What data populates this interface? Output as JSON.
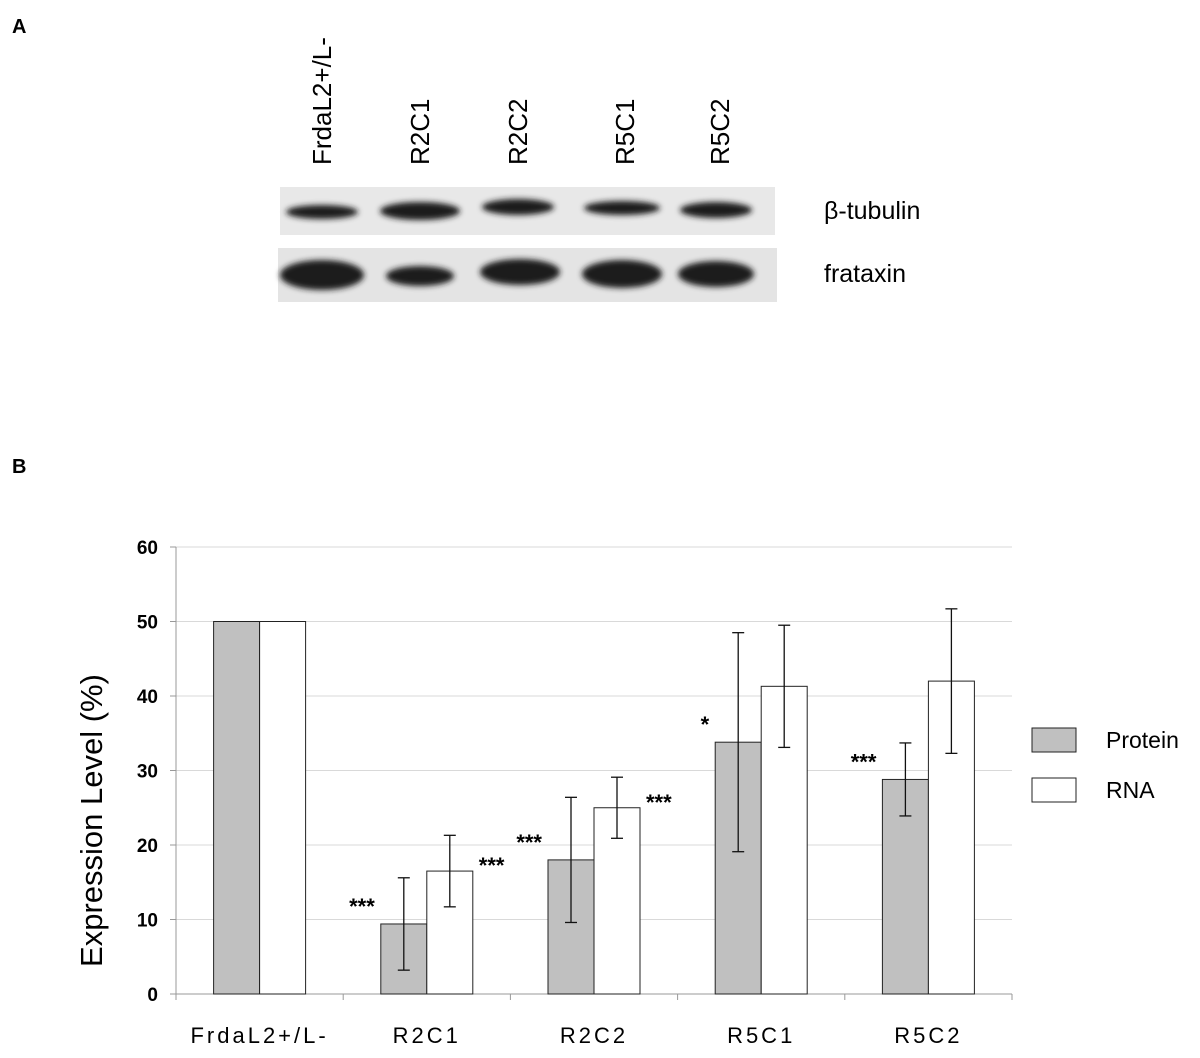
{
  "panel_labels": [
    "A",
    "B"
  ],
  "blot": {
    "lanes": [
      "FrdaL2+/L-",
      "R2C1",
      "R2C2",
      "R5C1",
      "R5C2"
    ],
    "bands": [
      "β-tubulin",
      "frataxin"
    ]
  },
  "chart_data": {
    "type": "bar",
    "categories": [
      "FrdaL2+/L-",
      "R2C1",
      "R2C2",
      "R5C1",
      "R5C2"
    ],
    "ylabel": "Expression Level (%)",
    "ylim": [
      0,
      60
    ],
    "yticks": [
      0,
      10,
      20,
      30,
      40,
      50,
      60
    ],
    "grid": true,
    "legend": "right",
    "series": [
      {
        "name": "Protein",
        "color": "#c0c0c0",
        "values": [
          50,
          9.4,
          18,
          33.8,
          28.8
        ],
        "errors": [
          null,
          6.2,
          8.4,
          14.7,
          4.9
        ],
        "annotations": [
          null,
          "***",
          "***",
          "*",
          "***"
        ]
      },
      {
        "name": "RNA",
        "color": "#ffffff",
        "values": [
          50,
          16.5,
          25,
          41.3,
          42
        ],
        "errors": [
          null,
          4.8,
          4.1,
          8.2,
          9.7
        ],
        "annotations": [
          null,
          "***",
          "***",
          null,
          null
        ]
      }
    ]
  }
}
